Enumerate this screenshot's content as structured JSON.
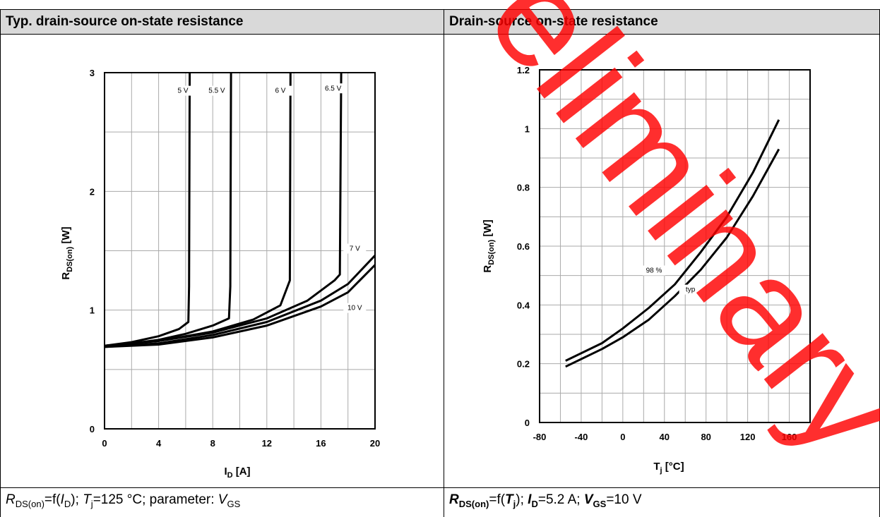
{
  "left": {
    "header": "Typ. drain-source on-state resistance",
    "caption": {
      "r": "R",
      "r_sub": "DS(on)",
      "mid1": "=f(",
      "i": "I",
      "i_sub": "D",
      "mid2": "); ",
      "t": "T",
      "t_sub": "j",
      "mid3": "=125 °C; parameter: ",
      "v": "V",
      "v_sub": "GS"
    }
  },
  "right": {
    "header": "Drain-source on-state resistance",
    "caption": {
      "r": "R",
      "r_sub": "DS(on)",
      "mid1": "=f(",
      "t": "T",
      "t_sub": "j",
      "mid2": "); ",
      "i": "I",
      "i_sub": "D",
      "mid3": "=5.2 A; ",
      "v": "V",
      "v_sub": "GS",
      "mid4": "=10 V"
    }
  },
  "watermark": {
    "text": "Preliminary",
    "color": "#ff0000"
  },
  "chart_data": [
    {
      "type": "line",
      "xlabel_main": "I",
      "xlabel_sub": "D",
      "xlabel_unit": " [A]",
      "ylabel_main": "R",
      "ylabel_sub": "DS(on)",
      "ylabel_unit": " [W]",
      "xlim": [
        0,
        20
      ],
      "ylim": [
        0,
        3
      ],
      "x_ticks": [
        "0",
        "4",
        "8",
        "12",
        "16",
        "20"
      ],
      "y_ticks": [
        "0",
        "1",
        "2",
        "3"
      ],
      "grid": true,
      "series": [
        {
          "name": "5 V",
          "points": [
            [
              0,
              0.7
            ],
            [
              2,
              0.73
            ],
            [
              4,
              0.78
            ],
            [
              5.5,
              0.84
            ],
            [
              6.2,
              0.9
            ],
            [
              6.25,
              1.2
            ],
            [
              6.3,
              3.0
            ]
          ]
        },
        {
          "name": "5.5 V",
          "points": [
            [
              0,
              0.7
            ],
            [
              2,
              0.72
            ],
            [
              4,
              0.75
            ],
            [
              6,
              0.8
            ],
            [
              8,
              0.87
            ],
            [
              9.2,
              0.93
            ],
            [
              9.3,
              1.2
            ],
            [
              9.35,
              3.0
            ]
          ]
        },
        {
          "name": "6 V",
          "points": [
            [
              0,
              0.7
            ],
            [
              4,
              0.74
            ],
            [
              8,
              0.82
            ],
            [
              11,
              0.92
            ],
            [
              13,
              1.04
            ],
            [
              13.7,
              1.25
            ],
            [
              13.75,
              3.0
            ]
          ]
        },
        {
          "name": "6.5 V",
          "points": [
            [
              0,
              0.7
            ],
            [
              4,
              0.74
            ],
            [
              8,
              0.81
            ],
            [
              12,
              0.93
            ],
            [
              15,
              1.08
            ],
            [
              17,
              1.25
            ],
            [
              17.4,
              1.3
            ],
            [
              17.5,
              3.0
            ]
          ]
        },
        {
          "name": "7 V",
          "points": [
            [
              0,
              0.69
            ],
            [
              4,
              0.72
            ],
            [
              8,
              0.79
            ],
            [
              12,
              0.9
            ],
            [
              16,
              1.08
            ],
            [
              18,
              1.22
            ],
            [
              20,
              1.46
            ]
          ]
        },
        {
          "name": "10 V",
          "points": [
            [
              0,
              0.69
            ],
            [
              4,
              0.71
            ],
            [
              8,
              0.77
            ],
            [
              12,
              0.87
            ],
            [
              16,
              1.03
            ],
            [
              18,
              1.15
            ],
            [
              20,
              1.38
            ]
          ]
        }
      ]
    },
    {
      "type": "line",
      "xlabel_main": "T",
      "xlabel_sub": "j",
      "xlabel_unit": " [°C]",
      "ylabel_main": "R",
      "ylabel_sub": "DS(on)",
      "ylabel_unit": " [W]",
      "xlim": [
        -80,
        180
      ],
      "ylim": [
        0,
        1.2
      ],
      "x_ticks": [
        "-80",
        "-40",
        "0",
        "40",
        "80",
        "120",
        "160"
      ],
      "y_ticks": [
        "0",
        "0.2",
        "0.4",
        "0.6",
        "0.8",
        "1",
        "1.2"
      ],
      "grid": true,
      "series": [
        {
          "name": "98 %",
          "points": [
            [
              -55,
              0.21
            ],
            [
              -20,
              0.27
            ],
            [
              0,
              0.32
            ],
            [
              25,
              0.39
            ],
            [
              50,
              0.47
            ],
            [
              75,
              0.58
            ],
            [
              100,
              0.7
            ],
            [
              125,
              0.85
            ],
            [
              150,
              1.03
            ]
          ]
        },
        {
          "name": "typ",
          "points": [
            [
              -55,
              0.19
            ],
            [
              -20,
              0.25
            ],
            [
              0,
              0.29
            ],
            [
              25,
              0.35
            ],
            [
              50,
              0.43
            ],
            [
              75,
              0.52
            ],
            [
              100,
              0.63
            ],
            [
              125,
              0.77
            ],
            [
              150,
              0.93
            ]
          ]
        }
      ]
    }
  ]
}
